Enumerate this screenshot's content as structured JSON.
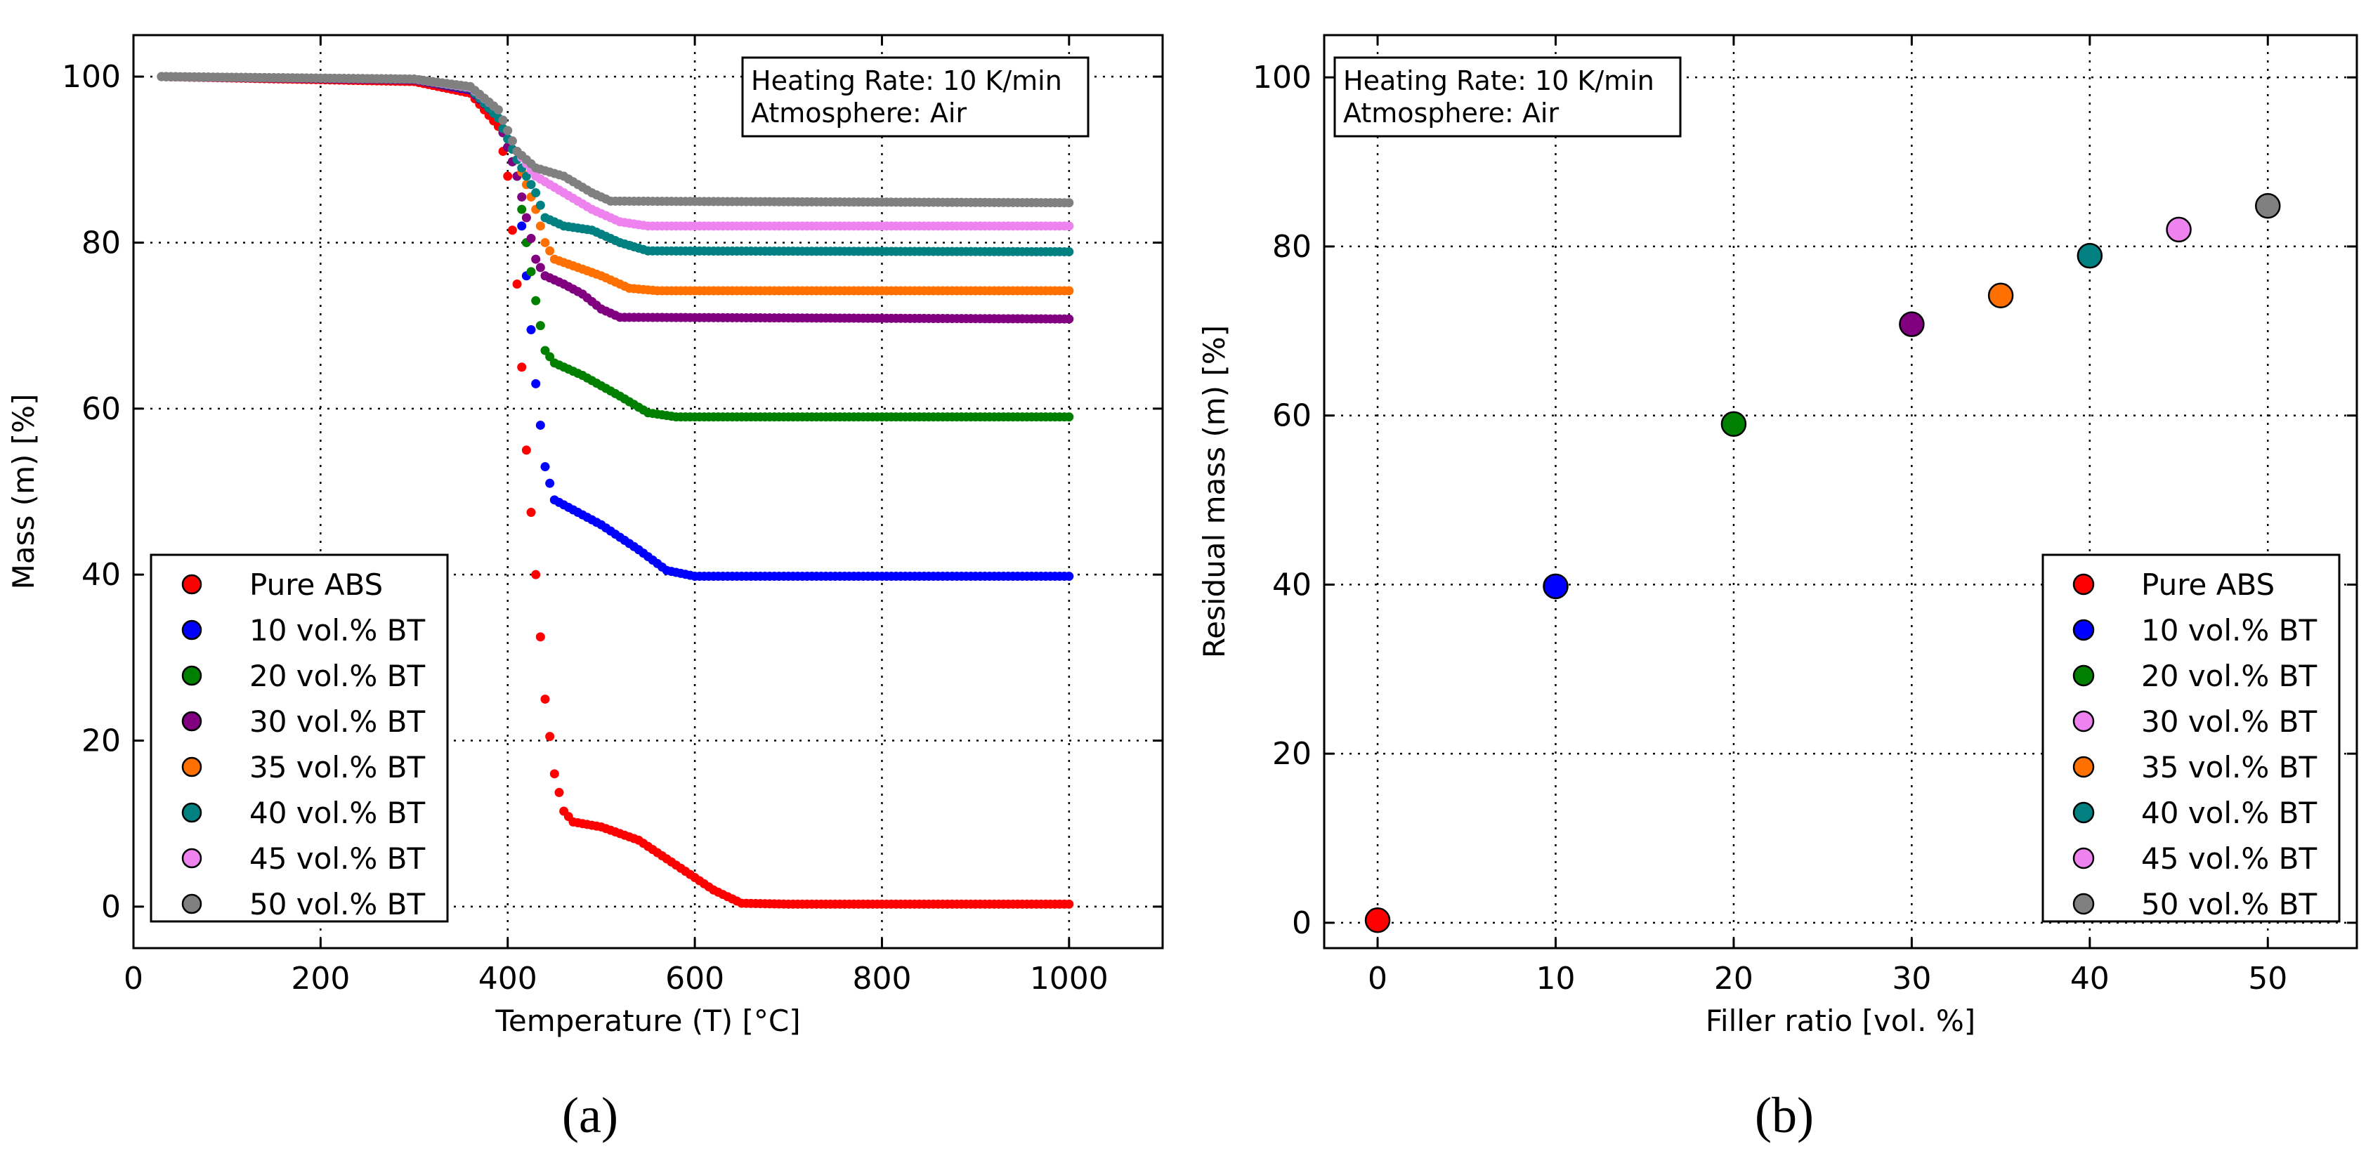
{
  "chart_data": [
    {
      "type": "scatter",
      "panel": "a",
      "xlabel": "Temperature (T) [°C]",
      "ylabel": "Mass (m) [%]",
      "xlim": [
        0,
        1100
      ],
      "ylim": [
        -5,
        105
      ],
      "xticks": [
        0,
        200,
        400,
        600,
        800,
        1000
      ],
      "yticks": [
        0,
        20,
        40,
        60,
        80,
        100
      ],
      "grid": true,
      "annotation": [
        "Heating Rate: 10 K/min",
        "Atmosphere: Air"
      ],
      "annotation_position": "top-right",
      "legend_position": "bottom-left",
      "series": [
        {
          "name": "Pure ABS",
          "color": "#ff0000",
          "points": [
            [
              30,
              100
            ],
            [
              300,
              99.4
            ],
            [
              360,
              98
            ],
            [
              390,
              94
            ],
            [
              400,
              88
            ],
            [
              410,
              75
            ],
            [
              420,
              55
            ],
            [
              430,
              40
            ],
            [
              440,
              25
            ],
            [
              450,
              16
            ],
            [
              460,
              11.5
            ],
            [
              470,
              10.2
            ],
            [
              500,
              9.6
            ],
            [
              540,
              8
            ],
            [
              580,
              5
            ],
            [
              620,
              2
            ],
            [
              650,
              0.4
            ],
            [
              700,
              0.3
            ],
            [
              1000,
              0.3
            ]
          ]
        },
        {
          "name": "10 vol.% BT",
          "color": "#0000ff",
          "points": [
            [
              30,
              100
            ],
            [
              300,
              99.6
            ],
            [
              360,
              98.4
            ],
            [
              390,
              95
            ],
            [
              410,
              88
            ],
            [
              420,
              76
            ],
            [
              430,
              63
            ],
            [
              440,
              53
            ],
            [
              450,
              49
            ],
            [
              470,
              47.8
            ],
            [
              500,
              46
            ],
            [
              540,
              43
            ],
            [
              570,
              40.5
            ],
            [
              600,
              39.8
            ],
            [
              1000,
              39.8
            ]
          ]
        },
        {
          "name": "20 vol.% BT",
          "color": "#007f00",
          "points": [
            [
              30,
              100
            ],
            [
              300,
              99.6
            ],
            [
              360,
              98.5
            ],
            [
              390,
              95
            ],
            [
              410,
              88
            ],
            [
              420,
              80
            ],
            [
              430,
              73
            ],
            [
              440,
              67
            ],
            [
              450,
              65.5
            ],
            [
              480,
              64
            ],
            [
              520,
              61.5
            ],
            [
              550,
              59.5
            ],
            [
              580,
              59
            ],
            [
              1000,
              59
            ]
          ]
        },
        {
          "name": "30 vol.% BT",
          "color": "#800080",
          "points": [
            [
              30,
              100
            ],
            [
              300,
              99.6
            ],
            [
              360,
              98.5
            ],
            [
              390,
              95
            ],
            [
              410,
              88
            ],
            [
              420,
              83
            ],
            [
              430,
              78
            ],
            [
              440,
              76
            ],
            [
              460,
              75
            ],
            [
              480,
              73.8
            ],
            [
              500,
              72
            ],
            [
              520,
              71
            ],
            [
              1000,
              70.8
            ]
          ]
        },
        {
          "name": "35 vol.% BT",
          "color": "#ff7000",
          "points": [
            [
              30,
              100
            ],
            [
              300,
              99.7
            ],
            [
              360,
              98.6
            ],
            [
              390,
              95
            ],
            [
              410,
              90
            ],
            [
              430,
              84
            ],
            [
              440,
              80
            ],
            [
              450,
              78
            ],
            [
              470,
              77.2
            ],
            [
              500,
              76
            ],
            [
              530,
              74.5
            ],
            [
              560,
              74.2
            ],
            [
              1000,
              74.2
            ]
          ]
        },
        {
          "name": "40 vol.% BT",
          "color": "#008080",
          "points": [
            [
              30,
              100
            ],
            [
              300,
              99.7
            ],
            [
              360,
              98.6
            ],
            [
              390,
              95
            ],
            [
              410,
              90
            ],
            [
              430,
              86
            ],
            [
              440,
              83
            ],
            [
              460,
              82
            ],
            [
              490,
              81.5
            ],
            [
              520,
              80
            ],
            [
              550,
              79
            ],
            [
              1000,
              78.9
            ]
          ]
        },
        {
          "name": "45 vol.% BT",
          "color": "#ee82ee",
          "points": [
            [
              30,
              100
            ],
            [
              300,
              99.7
            ],
            [
              360,
              98.7
            ],
            [
              390,
              96
            ],
            [
              410,
              91
            ],
            [
              430,
              88
            ],
            [
              460,
              86
            ],
            [
              490,
              84
            ],
            [
              520,
              82.5
            ],
            [
              550,
              82
            ],
            [
              1000,
              82
            ]
          ]
        },
        {
          "name": "50 vol.% BT",
          "color": "#808080",
          "points": [
            [
              30,
              100
            ],
            [
              300,
              99.7
            ],
            [
              360,
              98.8
            ],
            [
              390,
              96
            ],
            [
              410,
              91
            ],
            [
              430,
              89
            ],
            [
              460,
              88
            ],
            [
              490,
              86
            ],
            [
              510,
              85
            ],
            [
              1000,
              84.8
            ]
          ]
        }
      ],
      "caption": "(a)"
    },
    {
      "type": "scatter",
      "panel": "b",
      "xlabel": "Filler ratio [vol. %]",
      "ylabel": "Residual mass (m) [%]",
      "xlim": [
        -3,
        55
      ],
      "ylim": [
        -3,
        105
      ],
      "xticks": [
        0,
        10,
        20,
        30,
        40,
        50
      ],
      "yticks": [
        0,
        20,
        40,
        60,
        80,
        100
      ],
      "grid": true,
      "annotation": [
        "Heating Rate: 10 K/min",
        "Atmosphere: Air"
      ],
      "annotation_position": "top-left",
      "legend_position": "bottom-right",
      "series": [
        {
          "name": "Pure ABS",
          "color": "#ff0000",
          "x": 0,
          "y": 0.3
        },
        {
          "name": "10 vol.% BT",
          "color": "#0000ff",
          "x": 10,
          "y": 39.8
        },
        {
          "name": "20 vol.% BT",
          "color": "#007f00",
          "x": 20,
          "y": 59
        },
        {
          "name": "30 vol.% BT",
          "color": "#ee82ee",
          "legend_only": true
        },
        {
          "name": "35 vol.% BT",
          "color": "#ff7000",
          "x": 35,
          "y": 74.2
        },
        {
          "name": "40 vol.% BT",
          "color": "#008080",
          "x": 40,
          "y": 78.9
        },
        {
          "name": "45 vol.% BT",
          "color": "#ee82ee",
          "x": 45,
          "y": 82
        },
        {
          "name": "50 vol.% BT",
          "color": "#808080",
          "x": 50,
          "y": 84.8
        }
      ],
      "extra_points": [
        {
          "label": "30 vol.% BT",
          "color": "#800080",
          "x": 30,
          "y": 70.8
        }
      ],
      "caption": "(b)"
    }
  ]
}
